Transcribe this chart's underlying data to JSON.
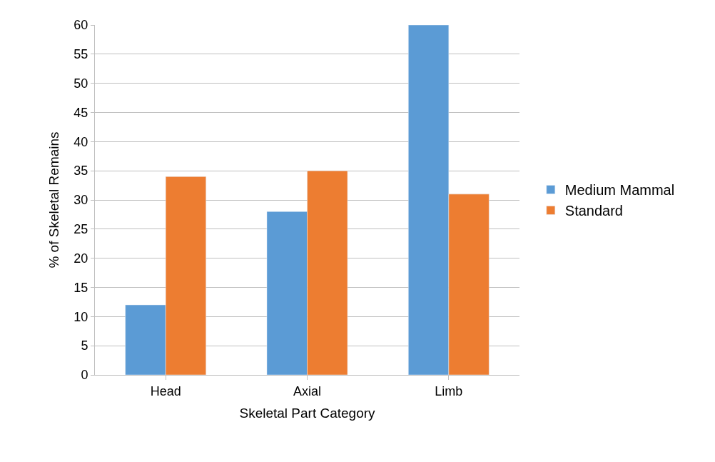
{
  "chart_data": {
    "type": "bar",
    "xlabel": "Skeletal Part Category",
    "ylabel": "% of Skeletal Remains",
    "categories": [
      "Head",
      "Axial",
      "Limb"
    ],
    "series": [
      {
        "name": "Medium Mammal",
        "color": "#5b9bd5",
        "values": [
          12,
          28,
          60
        ]
      },
      {
        "name": "Standard",
        "color": "#ed7d31",
        "values": [
          34,
          35,
          31
        ]
      }
    ],
    "ylim": [
      0,
      60
    ],
    "yticks": [
      0,
      5,
      10,
      15,
      20,
      25,
      30,
      35,
      40,
      45,
      50,
      55,
      60
    ],
    "grid": "y",
    "legend": "right"
  }
}
